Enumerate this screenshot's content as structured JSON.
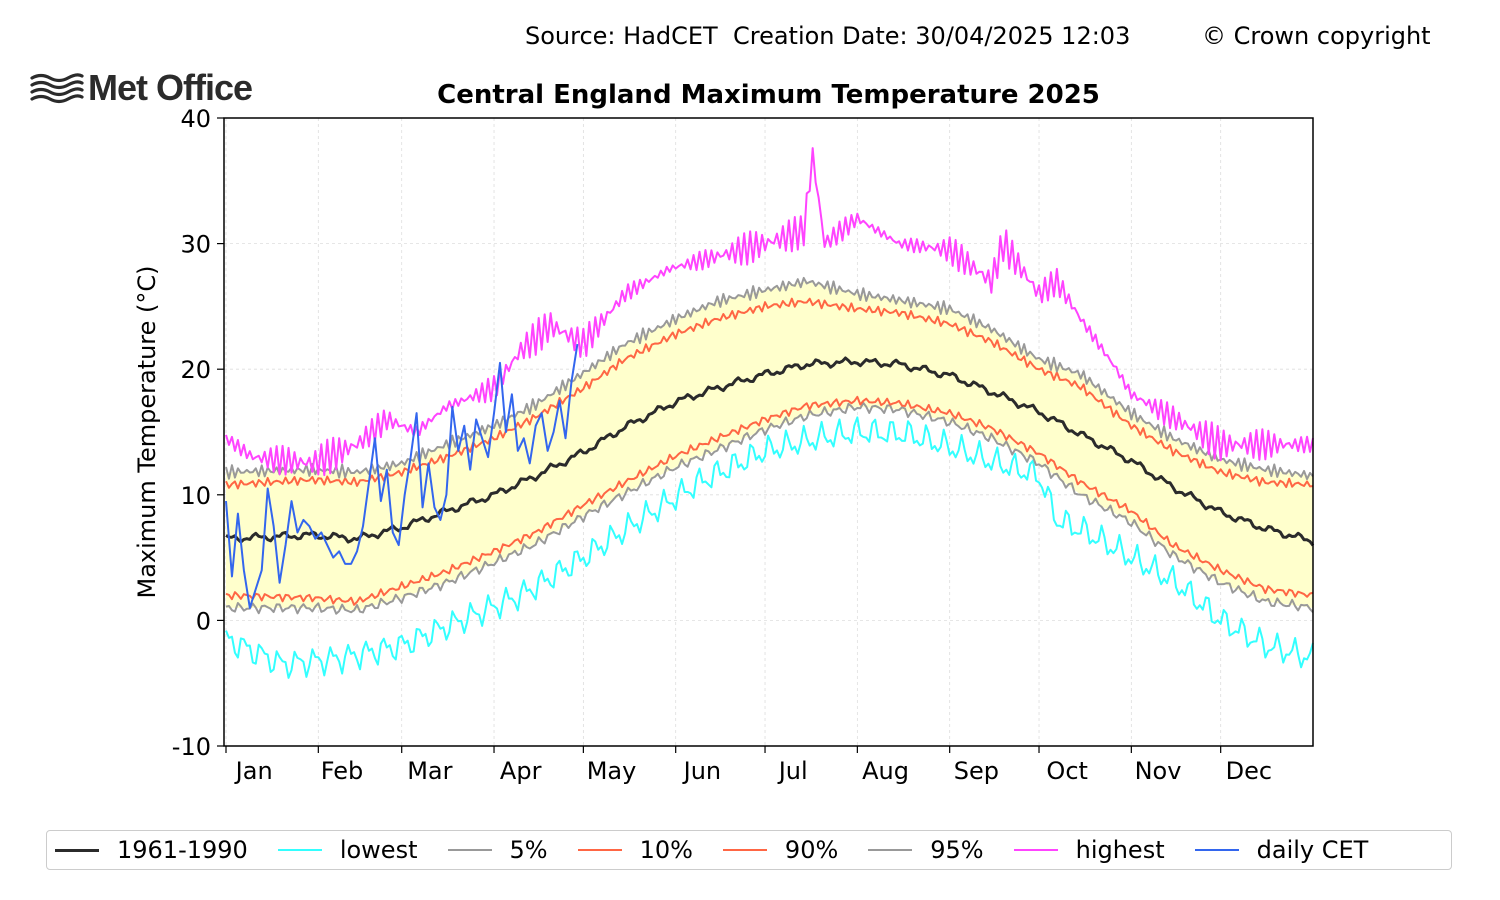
{
  "header": {
    "source": "Source: HadCET  Creation Date: 30/04/2025 12:03",
    "copyright": "© Crown copyright"
  },
  "logo": {
    "text": "Met Office",
    "icon": "met-office-waves-icon"
  },
  "chart_data": {
    "type": "line",
    "title": "Central England Maximum Temperature 2025",
    "ylabel": "Maximum Temperature (°C)",
    "xlabel": "",
    "ylim": [
      -10,
      40
    ],
    "xlim_days": [
      1,
      366
    ],
    "yticks": [
      "40",
      "30",
      "20",
      "10",
      "0",
      "-10"
    ],
    "months": [
      "Jan",
      "Feb",
      "Mar",
      "Apr",
      "May",
      "Jun",
      "Jul",
      "Aug",
      "Sep",
      "Oct",
      "Nov",
      "Dec"
    ],
    "grid": true,
    "legend_position": "bottom",
    "shaded_band": {
      "between": [
        "5%",
        "95%"
      ],
      "color": "#ffffcc"
    },
    "series": [
      {
        "name": "1961-1990",
        "color": "#2b2b2b",
        "width": 3,
        "x": [
          1,
          30,
          45,
          60,
          75,
          91,
          105,
          121,
          135,
          152,
          166,
          182,
          196,
          213,
          227,
          244,
          258,
          274,
          288,
          305,
          319,
          335,
          350,
          366
        ],
        "y": [
          6.5,
          6.8,
          6.5,
          7.4,
          8.7,
          10.0,
          11.5,
          13.4,
          15.4,
          17.4,
          18.5,
          19.6,
          20.4,
          20.6,
          20.4,
          19.5,
          18.2,
          16.6,
          14.8,
          12.7,
          10.6,
          8.6,
          7.3,
          6.3
        ]
      },
      {
        "name": "lowest",
        "color": "#33ffff",
        "width": 2,
        "x": [
          1,
          20,
          40,
          60,
          80,
          100,
          121,
          140,
          160,
          182,
          200,
          213,
          230,
          244,
          260,
          274,
          280,
          290,
          305,
          320,
          335,
          350,
          366
        ],
        "y": [
          -1.5,
          -3.5,
          -3.0,
          -2.0,
          0.0,
          2.0,
          5.0,
          8.0,
          11.0,
          13.5,
          14.5,
          15.0,
          14.8,
          13.8,
          12.5,
          11.5,
          8.0,
          7.0,
          5.0,
          3.0,
          0.0,
          -2.0,
          -3.0
        ]
      },
      {
        "name": "5%",
        "color": "#999999",
        "width": 2,
        "x": [
          1,
          30,
          45,
          60,
          75,
          91,
          105,
          121,
          135,
          152,
          166,
          182,
          196,
          213,
          227,
          244,
          258,
          274,
          288,
          305,
          319,
          335,
          350,
          366
        ],
        "y": [
          1.0,
          1.0,
          0.8,
          1.8,
          3.0,
          4.6,
          6.1,
          8.3,
          10.1,
          12.2,
          13.6,
          15.2,
          16.3,
          17.0,
          16.8,
          15.8,
          14.5,
          12.5,
          10.0,
          7.8,
          5.2,
          3.0,
          1.5,
          1.0
        ]
      },
      {
        "name": "10%",
        "color": "#ff6644",
        "width": 2,
        "x": [
          1,
          30,
          45,
          60,
          75,
          91,
          105,
          121,
          135,
          152,
          166,
          182,
          196,
          213,
          227,
          244,
          258,
          274,
          288,
          305,
          319,
          335,
          350,
          366
        ],
        "y": [
          2.0,
          1.8,
          1.5,
          2.7,
          3.9,
          5.5,
          7.0,
          9.2,
          11.0,
          13.1,
          14.5,
          16.0,
          17.1,
          17.5,
          17.3,
          16.5,
          15.3,
          13.3,
          11.0,
          8.7,
          6.0,
          4.0,
          2.5,
          2.0
        ]
      },
      {
        "name": "90%",
        "color": "#ff6644",
        "width": 2,
        "x": [
          1,
          30,
          45,
          60,
          75,
          91,
          105,
          121,
          135,
          152,
          166,
          182,
          196,
          213,
          227,
          244,
          258,
          274,
          288,
          305,
          319,
          335,
          350,
          366
        ],
        "y": [
          10.8,
          11.2,
          11.0,
          11.8,
          13.0,
          14.5,
          16.2,
          18.5,
          20.8,
          22.8,
          24.0,
          25.0,
          25.4,
          24.8,
          24.5,
          23.6,
          22.2,
          20.0,
          18.6,
          15.5,
          13.5,
          11.8,
          11.0,
          10.8
        ]
      },
      {
        "name": "95%",
        "color": "#999999",
        "width": 2,
        "x": [
          1,
          30,
          45,
          60,
          75,
          91,
          105,
          121,
          135,
          152,
          166,
          182,
          196,
          213,
          227,
          244,
          258,
          274,
          288,
          305,
          319,
          335,
          350,
          366
        ],
        "y": [
          11.8,
          12.0,
          11.8,
          12.5,
          14.0,
          15.5,
          17.2,
          19.7,
          22.0,
          24.0,
          25.4,
          26.3,
          27.0,
          26.0,
          25.5,
          24.8,
          23.2,
          20.8,
          19.6,
          16.5,
          14.5,
          12.8,
          12.0,
          11.5
        ]
      },
      {
        "name": "highest",
        "color": "#ff44ff",
        "width": 2,
        "x": [
          1,
          10,
          30,
          45,
          55,
          65,
          75,
          91,
          100,
          110,
          121,
          135,
          150,
          166,
          182,
          195,
          198,
          202,
          213,
          227,
          244,
          258,
          262,
          274,
          280,
          288,
          300,
          305,
          320,
          335,
          350,
          366
        ],
        "y": [
          14.5,
          13.0,
          12.5,
          14.0,
          16.0,
          15.0,
          17.0,
          18.5,
          21.5,
          23.5,
          22.0,
          26.0,
          28.0,
          29.0,
          30.0,
          31.0,
          37.0,
          30.0,
          32.0,
          30.0,
          29.5,
          27.0,
          30.0,
          26.0,
          27.0,
          24.0,
          20.0,
          18.0,
          16.0,
          14.0,
          14.0,
          14.0
        ]
      },
      {
        "name": "daily CET",
        "color": "#3366ee",
        "width": 2,
        "x": [
          1,
          3,
          5,
          7,
          9,
          11,
          13,
          15,
          17,
          19,
          21,
          23,
          25,
          27,
          29,
          31,
          33,
          35,
          37,
          39,
          41,
          43,
          45,
          47,
          49,
          51,
          53,
          55,
          57,
          59,
          61,
          63,
          65,
          67,
          69,
          71,
          73,
          75,
          77,
          79,
          81,
          83,
          85,
          87,
          89,
          91,
          93,
          95,
          97,
          99,
          101,
          103,
          105,
          107,
          109,
          111,
          113,
          115,
          117,
          119
        ],
        "y": [
          9.5,
          3.5,
          8.5,
          4.0,
          1.0,
          2.5,
          4.0,
          10.5,
          7.5,
          3.0,
          6.0,
          9.5,
          7.0,
          8.0,
          7.5,
          6.5,
          7.0,
          6.0,
          5.0,
          5.5,
          4.5,
          4.5,
          5.5,
          7.5,
          11.0,
          14.5,
          9.5,
          12.0,
          7.0,
          6.0,
          10.0,
          13.0,
          16.5,
          9.0,
          12.5,
          9.0,
          8.0,
          10.0,
          17.0,
          13.5,
          15.5,
          12.0,
          16.0,
          14.5,
          13.0,
          16.5,
          20.5,
          15.0,
          18.0,
          13.5,
          14.5,
          12.5,
          15.5,
          16.5,
          13.5,
          15.0,
          17.5,
          14.5,
          19.0,
          22.0
        ]
      }
    ]
  }
}
